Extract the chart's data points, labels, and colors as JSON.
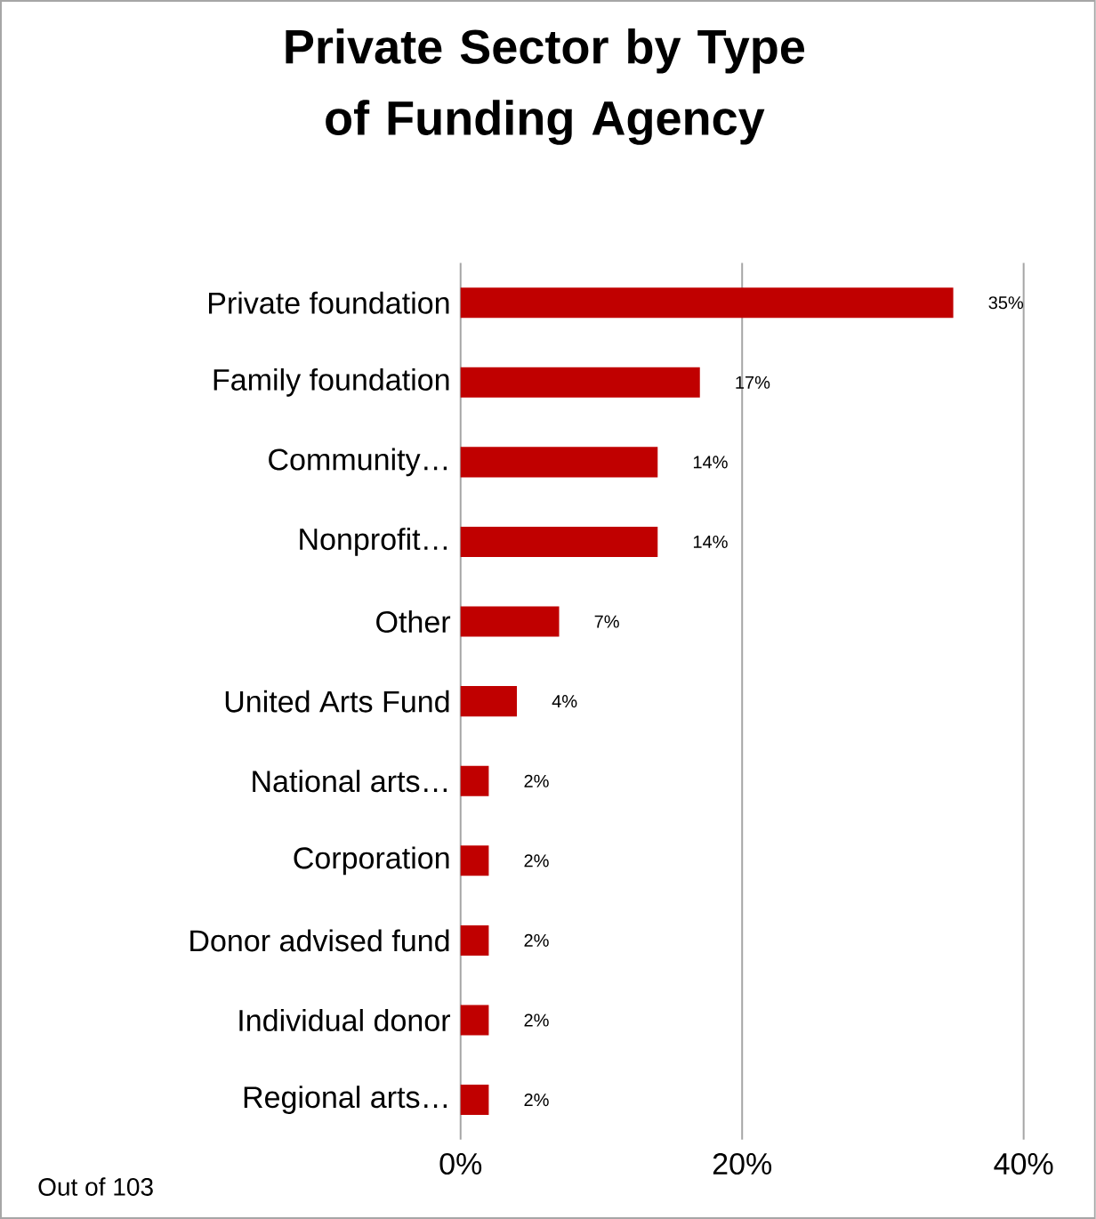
{
  "chart_data": {
    "type": "bar",
    "orientation": "horizontal",
    "title": "Private Sector by Type of Funding Agency",
    "categories": [
      "Private foundation",
      "Family foundation",
      "Community…",
      "Nonprofit…",
      "Other",
      "United Arts Fund",
      "National arts…",
      "Corporation",
      "Donor advised fund",
      "Individual donor",
      "Regional arts…"
    ],
    "values": [
      35,
      17,
      14,
      14,
      7,
      4,
      2,
      2,
      2,
      2,
      2
    ],
    "value_labels": [
      "35%",
      "17%",
      "14%",
      "14%",
      "7%",
      "4%",
      "2%",
      "2%",
      "2%",
      "2%",
      "2%"
    ],
    "color": "#c00000",
    "xlim": [
      0,
      40
    ],
    "xticks": [
      {
        "value": 0,
        "label": "0%"
      },
      {
        "value": 20,
        "label": "20%"
      },
      {
        "value": 40,
        "label": "40%"
      }
    ],
    "grid": "x",
    "annotations": [
      "Out of 103"
    ]
  }
}
